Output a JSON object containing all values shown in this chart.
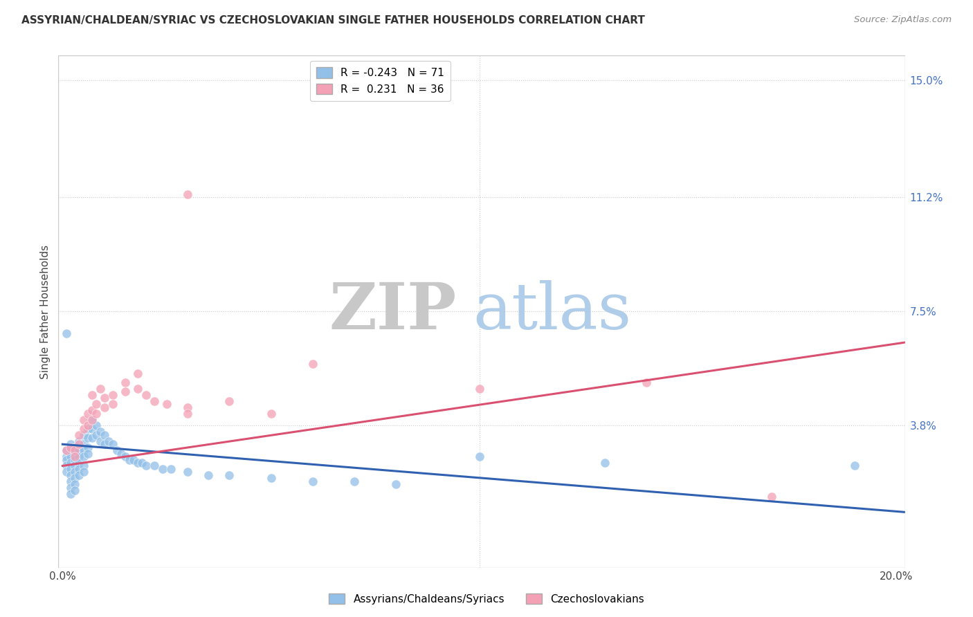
{
  "title": "ASSYRIAN/CHALDEAN/SYRIAC VS CZECHOSLOVAKIAN SINGLE FATHER HOUSEHOLDS CORRELATION CHART",
  "source": "Source: ZipAtlas.com",
  "ylabel": "Single Father Households",
  "yticks": [
    0.0,
    0.038,
    0.075,
    0.112,
    0.15
  ],
  "ytick_labels": [
    "",
    "3.8%",
    "7.5%",
    "11.2%",
    "15.0%"
  ],
  "xticks": [
    0.0,
    0.05,
    0.1,
    0.15,
    0.2
  ],
  "xtick_labels": [
    "0.0%",
    "",
    "",
    "",
    "20.0%"
  ],
  "xmin": -0.001,
  "xmax": 0.202,
  "ymin": -0.008,
  "ymax": 0.158,
  "legend_r1": "R = -0.243",
  "legend_n1": "N = 71",
  "legend_r2": "R =  0.231",
  "legend_n2": "N = 36",
  "blue_color": "#92C0E8",
  "pink_color": "#F4A0B5",
  "blue_line_color": "#3060B0",
  "pink_line_color": "#D95070",
  "watermark_zip": "ZIP",
  "watermark_atlas": "atlas",
  "blue_scatter": [
    [
      0.001,
      0.03
    ],
    [
      0.001,
      0.028
    ],
    [
      0.001,
      0.027
    ],
    [
      0.001,
      0.025
    ],
    [
      0.001,
      0.023
    ],
    [
      0.002,
      0.032
    ],
    [
      0.002,
      0.03
    ],
    [
      0.002,
      0.028
    ],
    [
      0.002,
      0.026
    ],
    [
      0.002,
      0.024
    ],
    [
      0.002,
      0.022
    ],
    [
      0.002,
      0.02
    ],
    [
      0.002,
      0.018
    ],
    [
      0.002,
      0.016
    ],
    [
      0.003,
      0.031
    ],
    [
      0.003,
      0.029
    ],
    [
      0.003,
      0.027
    ],
    [
      0.003,
      0.025
    ],
    [
      0.003,
      0.023
    ],
    [
      0.003,
      0.021
    ],
    [
      0.003,
      0.019
    ],
    [
      0.003,
      0.017
    ],
    [
      0.004,
      0.033
    ],
    [
      0.004,
      0.03
    ],
    [
      0.004,
      0.028
    ],
    [
      0.004,
      0.026
    ],
    [
      0.004,
      0.024
    ],
    [
      0.004,
      0.022
    ],
    [
      0.005,
      0.035
    ],
    [
      0.005,
      0.032
    ],
    [
      0.005,
      0.03
    ],
    [
      0.005,
      0.028
    ],
    [
      0.005,
      0.025
    ],
    [
      0.005,
      0.023
    ],
    [
      0.006,
      0.037
    ],
    [
      0.006,
      0.034
    ],
    [
      0.006,
      0.031
    ],
    [
      0.006,
      0.029
    ],
    [
      0.007,
      0.04
    ],
    [
      0.007,
      0.037
    ],
    [
      0.007,
      0.034
    ],
    [
      0.008,
      0.038
    ],
    [
      0.008,
      0.035
    ],
    [
      0.009,
      0.036
    ],
    [
      0.009,
      0.033
    ],
    [
      0.01,
      0.035
    ],
    [
      0.01,
      0.032
    ],
    [
      0.011,
      0.033
    ],
    [
      0.012,
      0.032
    ],
    [
      0.013,
      0.03
    ],
    [
      0.014,
      0.029
    ],
    [
      0.015,
      0.028
    ],
    [
      0.016,
      0.027
    ],
    [
      0.017,
      0.027
    ],
    [
      0.018,
      0.026
    ],
    [
      0.019,
      0.026
    ],
    [
      0.02,
      0.025
    ],
    [
      0.022,
      0.025
    ],
    [
      0.024,
      0.024
    ],
    [
      0.026,
      0.024
    ],
    [
      0.03,
      0.023
    ],
    [
      0.035,
      0.022
    ],
    [
      0.04,
      0.022
    ],
    [
      0.05,
      0.021
    ],
    [
      0.06,
      0.02
    ],
    [
      0.07,
      0.02
    ],
    [
      0.001,
      0.068
    ],
    [
      0.1,
      0.028
    ],
    [
      0.13,
      0.026
    ],
    [
      0.19,
      0.025
    ],
    [
      0.08,
      0.019
    ]
  ],
  "pink_scatter": [
    [
      0.001,
      0.03
    ],
    [
      0.002,
      0.031
    ],
    [
      0.003,
      0.03
    ],
    [
      0.003,
      0.028
    ],
    [
      0.004,
      0.035
    ],
    [
      0.004,
      0.032
    ],
    [
      0.005,
      0.04
    ],
    [
      0.005,
      0.037
    ],
    [
      0.006,
      0.042
    ],
    [
      0.006,
      0.038
    ],
    [
      0.007,
      0.043
    ],
    [
      0.007,
      0.04
    ],
    [
      0.007,
      0.048
    ],
    [
      0.008,
      0.045
    ],
    [
      0.008,
      0.042
    ],
    [
      0.009,
      0.05
    ],
    [
      0.01,
      0.047
    ],
    [
      0.01,
      0.044
    ],
    [
      0.012,
      0.048
    ],
    [
      0.012,
      0.045
    ],
    [
      0.015,
      0.052
    ],
    [
      0.015,
      0.049
    ],
    [
      0.018,
      0.055
    ],
    [
      0.018,
      0.05
    ],
    [
      0.02,
      0.048
    ],
    [
      0.022,
      0.046
    ],
    [
      0.025,
      0.045
    ],
    [
      0.03,
      0.044
    ],
    [
      0.03,
      0.042
    ],
    [
      0.04,
      0.046
    ],
    [
      0.05,
      0.042
    ],
    [
      0.03,
      0.113
    ],
    [
      0.06,
      0.058
    ],
    [
      0.1,
      0.05
    ],
    [
      0.14,
      0.052
    ],
    [
      0.17,
      0.015
    ]
  ],
  "blue_line_x": [
    0.0,
    0.202
  ],
  "blue_line_y": [
    0.032,
    0.01
  ],
  "pink_line_x": [
    0.0,
    0.202
  ],
  "pink_line_y": [
    0.025,
    0.065
  ]
}
